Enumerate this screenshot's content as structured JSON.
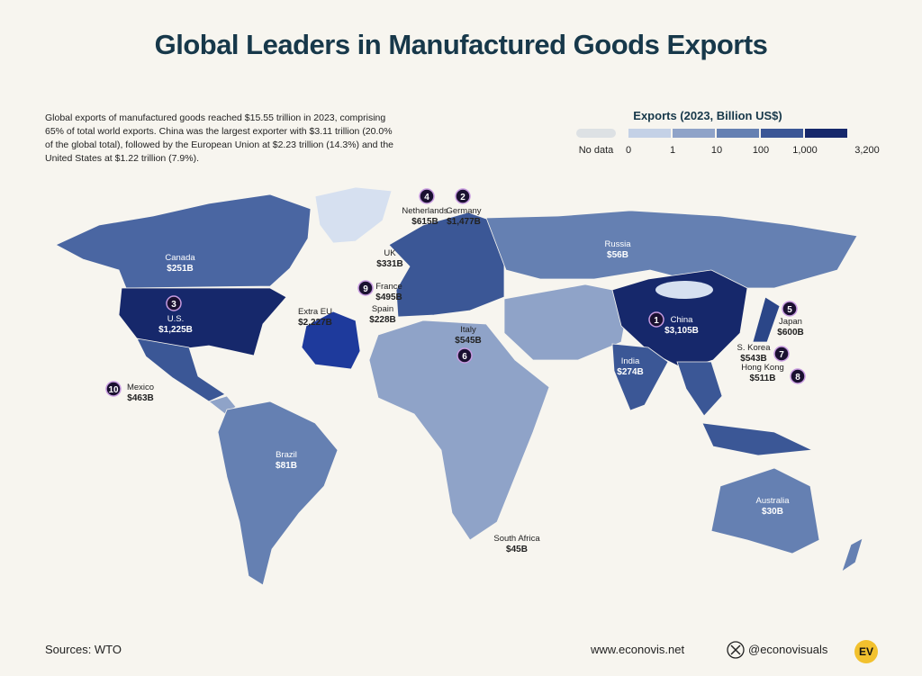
{
  "title": "Global Leaders in Manufactured Goods Exports",
  "description": "Global exports of manufactured goods reached $15.55 trillion in 2023, comprising 65% of total world exports. China was the largest exporter with $3.11 trillion (20.0% of the global total), followed by the European Union at $2.23 trillion (14.3%) and the United States at $1.22 trillion (7.9%).",
  "legend": {
    "title": "Exports (2023, Billion US$)",
    "no_data": "No data",
    "no_data_color": "#dde1e4",
    "ticks": [
      "0",
      "1",
      "10",
      "100",
      "1,000",
      "3,200"
    ],
    "colors": [
      "#c4d1e6",
      "#8fa3c8",
      "#6580b2",
      "#3b5796",
      "#16286b"
    ]
  },
  "labels": [
    {
      "name": "Canada",
      "value": "$251B"
    },
    {
      "name": "U.S.",
      "value": "$1,225B",
      "rank": 3
    },
    {
      "name": "Mexico",
      "value": "$463B",
      "rank": 10
    },
    {
      "name": "Brazil",
      "value": "$81B"
    },
    {
      "name": "Russia",
      "value": "$56B"
    },
    {
      "name": "Netherlands",
      "value": "$615B",
      "rank": 4
    },
    {
      "name": "Germany",
      "value": "$1,477B",
      "rank": 2
    },
    {
      "name": "UK",
      "value": "$331B"
    },
    {
      "name": "France",
      "value": "$495B",
      "rank": 9
    },
    {
      "name": "Spain",
      "value": "$228B"
    },
    {
      "name": "Extra EU",
      "value": "$2,227B"
    },
    {
      "name": "Italy",
      "value": "$545B",
      "rank": 6
    },
    {
      "name": "China",
      "value": "$3,105B",
      "rank": 1
    },
    {
      "name": "Japan",
      "value": "$600B",
      "rank": 5
    },
    {
      "name": "S. Korea",
      "value": "$543B",
      "rank": 7
    },
    {
      "name": "Hong Kong",
      "value": "$511B",
      "rank": 8
    },
    {
      "name": "India",
      "value": "$274B"
    },
    {
      "name": "Australia",
      "value": "$30B"
    },
    {
      "name": "South Africa",
      "value": "$45B"
    }
  ],
  "footer": {
    "source": "Sources: WTO",
    "website": "www.econovis.net",
    "social": "@econovisuals",
    "logo": "EV"
  }
}
